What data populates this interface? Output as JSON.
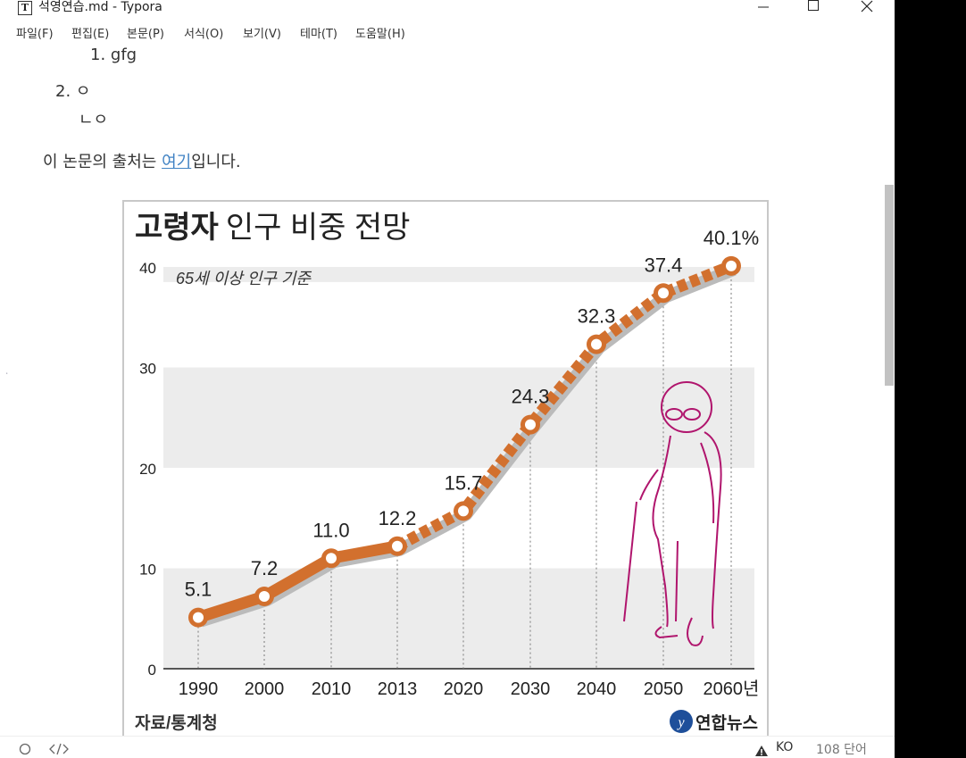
{
  "window": {
    "title": "석영연습.md - Typora",
    "app_icon_letter": "T"
  },
  "menu": [
    "파일(F)",
    "편집(E)",
    "본문(P)",
    "서식(O)",
    "보기(V)",
    "테마(T)",
    "도움말(H)"
  ],
  "document": {
    "list_item_1": "1. gfg",
    "list_item_2": "2. ㅇ",
    "list_item_2_sub": "ㄴㅇ",
    "source_prefix": "이 논문의 출처는 ",
    "source_link": "여기",
    "source_suffix": "입니다."
  },
  "chart_data": {
    "type": "line",
    "title_bold": "고령자",
    "title_rest": "인구 비중 전망",
    "subtitle": "65세 이상 인구 기준",
    "categories": [
      "1990",
      "2000",
      "2010",
      "2013",
      "2020",
      "2030",
      "2040",
      "2050",
      "2060년"
    ],
    "values": [
      5.1,
      7.2,
      11.0,
      12.2,
      15.7,
      24.3,
      32.3,
      37.4,
      40.1
    ],
    "value_labels": [
      "5.1",
      "7.2",
      "11.0",
      "12.2",
      "15.7",
      "24.3",
      "32.3",
      "37.4",
      "40.1%"
    ],
    "projected_from_index": 3,
    "yticks": [
      "0",
      "10",
      "20",
      "30",
      "40"
    ],
    "ylim": [
      0,
      40
    ],
    "source": "자료/통계청",
    "credit": "연합뉴스",
    "line_color": "#d2702e",
    "band_color": "#ececec",
    "figure_color": "#b0156d"
  },
  "status": {
    "language": "KO",
    "word_count": "108 단어"
  }
}
